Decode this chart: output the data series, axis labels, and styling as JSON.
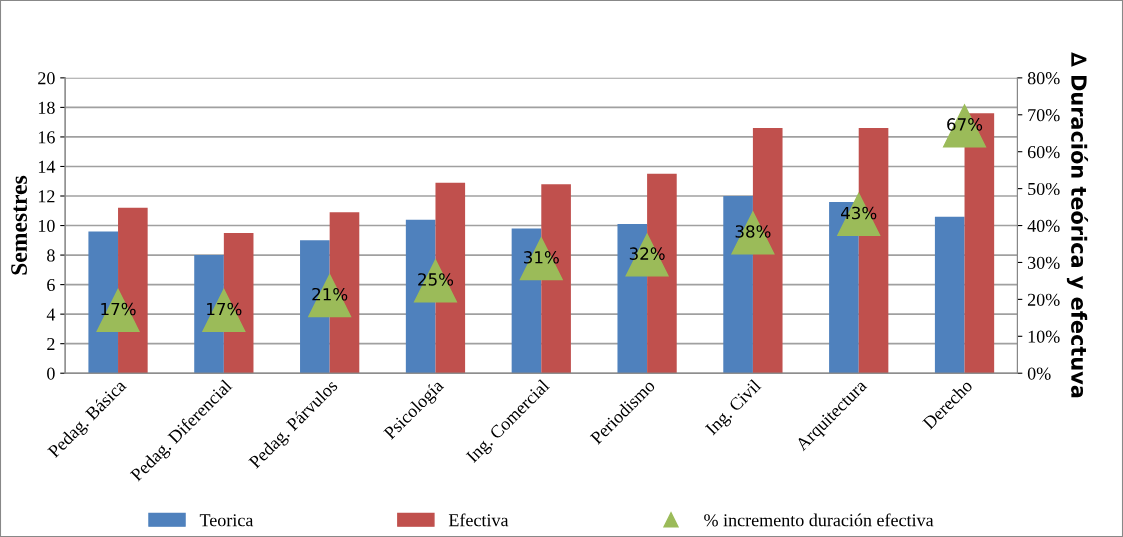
{
  "chart_data": {
    "type": "bar",
    "categories": [
      "Pedag. Básica",
      "Pedag. Diferencial",
      "Pedag. Párvulos",
      "Psicología",
      "Ing. Comercial",
      "Periodismo",
      "Ing. Civil",
      "Arquitectura",
      "Derecho"
    ],
    "series": [
      {
        "name": "Teorica",
        "color": "#4f81bd",
        "values": [
          9.6,
          8.0,
          9.0,
          10.4,
          9.8,
          10.1,
          12.0,
          11.6,
          10.6
        ]
      },
      {
        "name": "Efectiva",
        "color": "#c0504d",
        "values": [
          11.2,
          9.5,
          10.9,
          12.9,
          12.8,
          13.5,
          16.6,
          16.6,
          17.6
        ]
      },
      {
        "name": "% incremento duración efectiva",
        "type": "scatter",
        "marker": "triangle",
        "axis": "y2",
        "color": "#9bbb59",
        "values": [
          17,
          17,
          21,
          25,
          31,
          32,
          38,
          43,
          67
        ],
        "value_labels": [
          "17%",
          "17%",
          "21%",
          "25%",
          "31%",
          "32%",
          "38%",
          "43%",
          "67%"
        ]
      }
    ],
    "ylabel": "Semestres",
    "y2label": "∆ Duración teórica y efectuva",
    "ylim": [
      0,
      20
    ],
    "yticks": [
      0,
      2,
      4,
      6,
      8,
      10,
      12,
      14,
      16,
      18,
      20
    ],
    "y2lim": [
      0,
      80
    ],
    "y2ticks": [
      {
        "value": 0,
        "label": "0%"
      },
      {
        "value": 10,
        "label": "10%"
      },
      {
        "value": 20,
        "label": "20%"
      },
      {
        "value": 30,
        "label": "30%"
      },
      {
        "value": 40,
        "label": "40%"
      },
      {
        "value": 50,
        "label": "50%"
      },
      {
        "value": 60,
        "label": "60%"
      },
      {
        "value": 70,
        "label": "70%"
      },
      {
        "value": 80,
        "label": "80%"
      }
    ],
    "grid": "y",
    "legend": "bottom"
  }
}
